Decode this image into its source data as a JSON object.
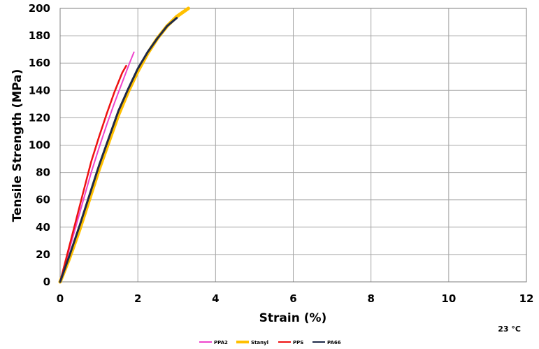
{
  "chart_data": {
    "type": "line",
    "title": "",
    "xlabel": "Strain (%)",
    "ylabel": "Tensile Strength (MPa)",
    "xlim": [
      0,
      12
    ],
    "ylim": [
      0,
      200
    ],
    "xticks": [
      0,
      2,
      4,
      6,
      8,
      10,
      12
    ],
    "yticks": [
      0,
      20,
      40,
      60,
      80,
      100,
      120,
      140,
      160,
      180,
      200
    ],
    "grid": true,
    "legend_position": "bottom-center",
    "annotation": "23 °C",
    "series": [
      {
        "name": "PPA2",
        "color": "#ee44cc",
        "x": [
          0,
          0.2,
          0.4,
          0.6,
          0.8,
          1.0,
          1.2,
          1.4,
          1.6,
          1.8,
          1.9
        ],
        "y": [
          0,
          20,
          40,
          60,
          80,
          98,
          115,
          131,
          146,
          161,
          168
        ]
      },
      {
        "name": "Stanyl",
        "color": "#ffc000",
        "x": [
          0,
          0.25,
          0.5,
          0.75,
          1.0,
          1.25,
          1.5,
          1.75,
          2.0,
          2.25,
          2.5,
          2.75,
          3.0,
          3.3
        ],
        "y": [
          0,
          18,
          38,
          60,
          82,
          102,
          122,
          139,
          154,
          167,
          178,
          187,
          194,
          200
        ]
      },
      {
        "name": "PPS",
        "color": "#ee1111",
        "x": [
          0,
          0.2,
          0.4,
          0.6,
          0.8,
          1.0,
          1.2,
          1.4,
          1.6,
          1.7
        ],
        "y": [
          0,
          22,
          44,
          66,
          88,
          106,
          123,
          139,
          153,
          158
        ]
      },
      {
        "name": "PA66",
        "color": "#1f2a48",
        "x": [
          0,
          0.25,
          0.5,
          0.75,
          1.0,
          1.25,
          1.5,
          1.75,
          2.0,
          2.25,
          2.5,
          2.75,
          3.0
        ],
        "y": [
          0,
          20,
          41,
          63,
          85,
          105,
          125,
          141,
          156,
          168,
          178,
          187,
          193
        ]
      }
    ]
  }
}
